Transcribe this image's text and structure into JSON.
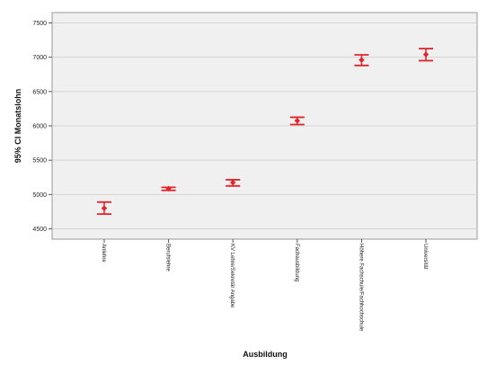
{
  "chart_data": {
    "type": "scatter",
    "title": "",
    "xlabel": "Ausbildung",
    "ylabel": "95% CI Monatslohn",
    "ylim": [
      4350,
      7650
    ],
    "yticks": [
      4500,
      5000,
      5500,
      6000,
      6500,
      7000,
      7500
    ],
    "grid": true,
    "categories": [
      "Anlehre",
      "Berufslehre",
      "KV Lehre/Sekretär Angabe",
      "Fachausbildung",
      "Höhere Fachschule/Fachhochschule",
      "Universität"
    ],
    "series": [
      {
        "mean": [
          4800,
          5085,
          5175,
          6075,
          6960,
          7040
        ],
        "ci_lower": [
          4715,
          5060,
          5125,
          6020,
          6880,
          6950
        ],
        "ci_upper": [
          4890,
          5105,
          5215,
          6125,
          7035,
          7125
        ]
      }
    ],
    "color": "#e0242b",
    "background": "#f0f0f0"
  }
}
